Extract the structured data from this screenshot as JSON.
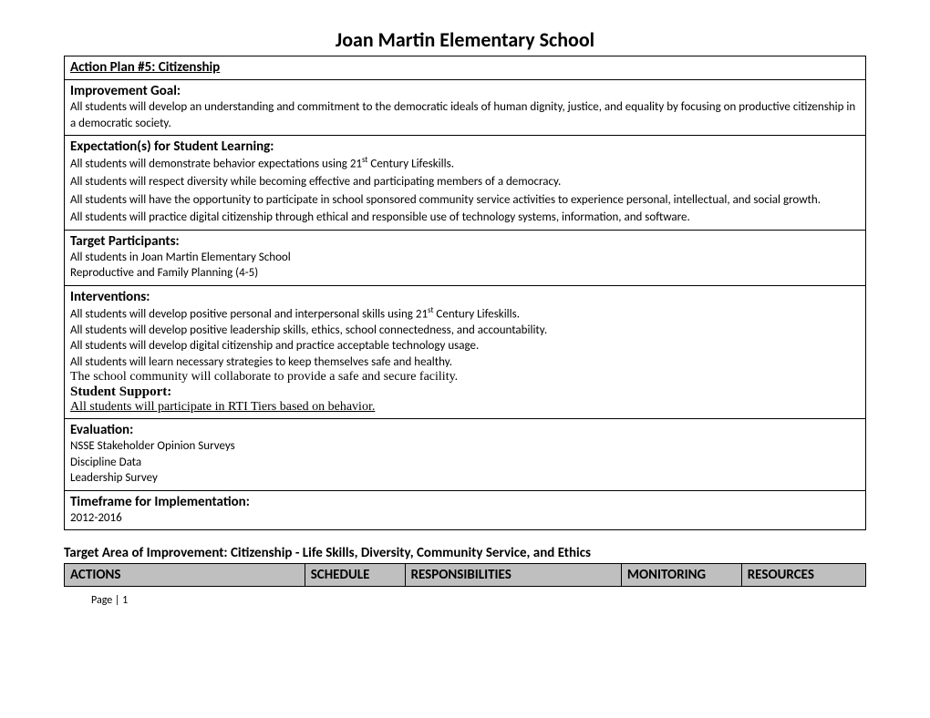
{
  "title": "Joan Martin Elementary School",
  "sections": {
    "actionPlan": "Action Plan #5: Citizenship",
    "improvementGoal": {
      "header": "Improvement Goal:",
      "body": "All students will develop an understanding and commitment to the democratic ideals of human dignity, justice, and equality by focusing on productive citizenship in a democratic society."
    },
    "expectations": {
      "header": "Expectation(s) for Student Learning:",
      "line1a": "All students will demonstrate behavior expectations using 21",
      "line1b": " Century Lifeskills.",
      "sup": "st",
      "line2": "All students will respect diversity while becoming effective and participating members of a democracy.",
      "line3": "All students will have the opportunity to participate in school sponsored community service activities to experience personal, intellectual, and social growth.",
      "line4": "All students will practice digital citizenship through ethical and responsible use of technology systems, information, and software."
    },
    "targetParticipants": {
      "header": "Target Participants:",
      "line1": "All students in Joan Martin Elementary School",
      "line2": "Reproductive and Family Planning (4-5)"
    },
    "interventions": {
      "header": "Interventions:",
      "line1a": "All students will develop positive personal and interpersonal skills using 21",
      "line1b": " Century Lifeskills.",
      "sup": "st",
      "line2": "All students will develop positive leadership skills, ethics, school connectedness, and accountability.",
      "line3": "All students will develop digital citizenship and practice acceptable technology usage.",
      "line4": "All students will learn necessary strategies to keep themselves safe and healthy.",
      "line5": "The school community will collaborate to provide a safe and secure facility.",
      "supportHeader": "Student Support:",
      "supportLine": "All students will participate in RTI Tiers based on behavior."
    },
    "evaluation": {
      "header": "Evaluation:",
      "line1": "NSSE Stakeholder Opinion Surveys",
      "line2": "Discipline Data",
      "line3": "Leadership Survey"
    },
    "timeframe": {
      "header": "Timeframe for Implementation:",
      "body": "2012-2016"
    }
  },
  "targetArea": "Target Area of Improvement: Citizenship - Life Skills, Diversity, Community Service, and Ethics",
  "columns": {
    "c1": "ACTIONS",
    "c2": "SCHEDULE",
    "c3": "RESPONSIBILITIES",
    "c4": "MONITORING",
    "c5": "RESOURCES"
  },
  "columnWidths": {
    "c1": "30%",
    "c2": "12.5%",
    "c3": "27%",
    "c4": "15%",
    "c5": "15.5%"
  },
  "footer": "Page | 1",
  "colors": {
    "headerBg": "#bfbfbf",
    "border": "#000000",
    "text": "#000000",
    "background": "#ffffff"
  }
}
